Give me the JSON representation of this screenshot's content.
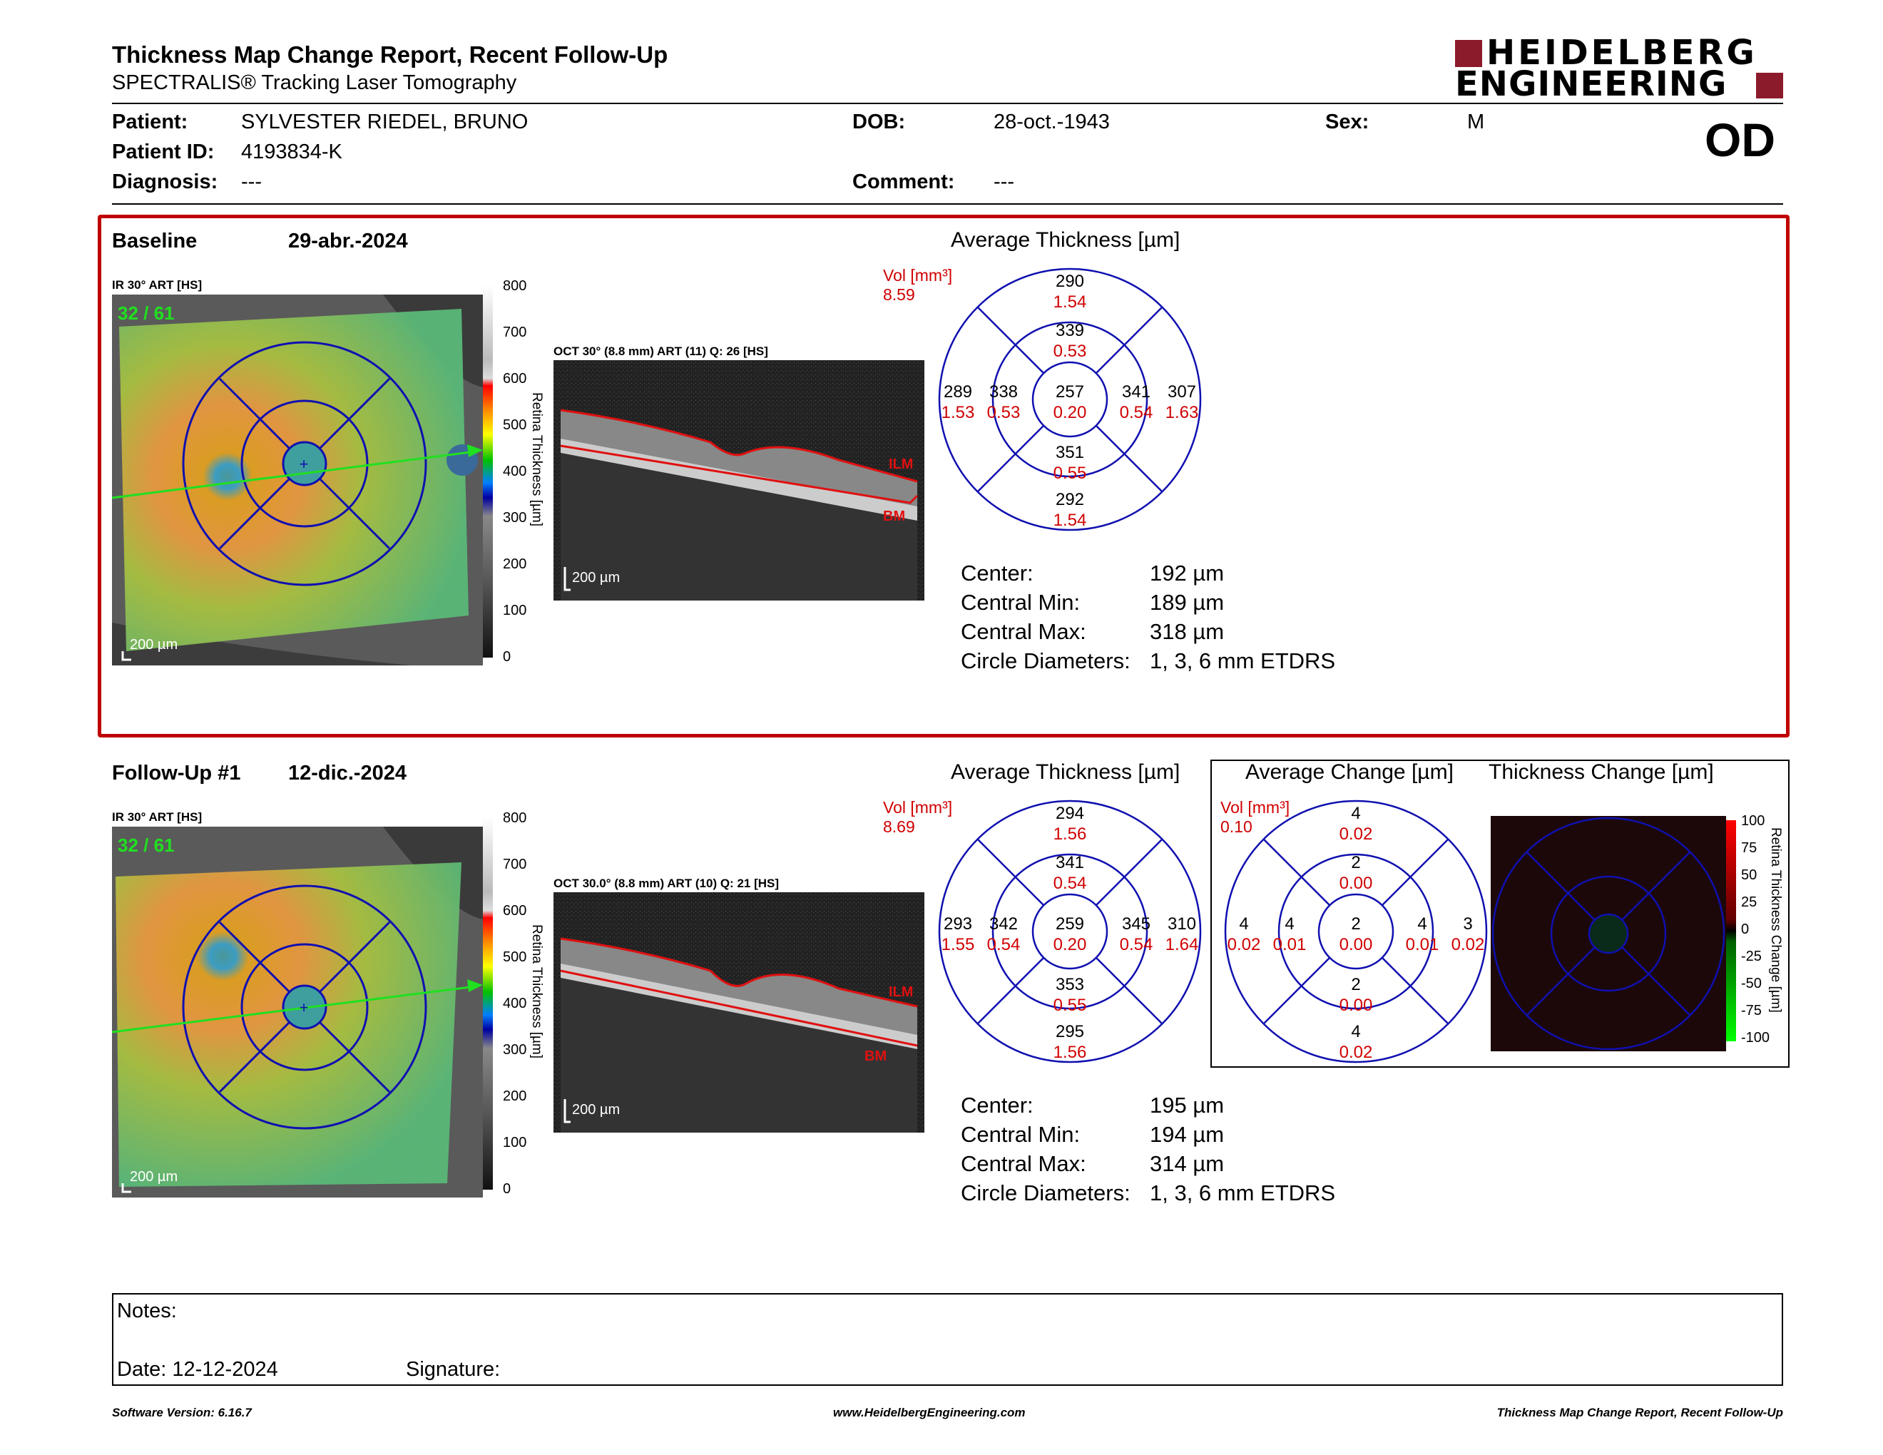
{
  "header": {
    "title": "Thickness Map Change Report, Recent Follow-Up",
    "subtitle": "SPECTRALIS® Tracking Laser Tomography",
    "logo_line1": "HEIDELBERG",
    "logo_line2": "ENGINEERING",
    "eye": "OD",
    "brand_color": "#8b1a2b"
  },
  "patient": {
    "patient_label": "Patient:",
    "patient_value": "SYLVESTER RIEDEL, BRUNO",
    "id_label": "Patient ID:",
    "id_value": "4193834-K",
    "diagnosis_label": "Diagnosis:",
    "diagnosis_value": "---",
    "dob_label": "DOB:",
    "dob_value": "28-oct.-1943",
    "comment_label": "Comment:",
    "comment_value": "---",
    "sex_label": "Sex:",
    "sex_value": "M"
  },
  "baseline": {
    "label": "Baseline",
    "date": "29-abr.-2024",
    "ir_label": "IR 30° ART [HS]",
    "frames": "32 / 61",
    "scale": "200 µm",
    "colorbar_ticks": [
      "800",
      "700",
      "600",
      "500",
      "400",
      "300",
      "200",
      "100",
      "0"
    ],
    "colorbar_label": "Retina Thickness [µm]",
    "oct_label": "OCT 30° (8.8 mm) ART (11) Q: 26 [HS]",
    "oct_scale": "200 µm",
    "ilm": "ILM",
    "bm": "BM",
    "avg_title": "Average Thickness [µm]",
    "vol_label": "Vol [mm³]",
    "vol_total": "8.59",
    "etdrs": {
      "outer_sup": "290",
      "outer_sup_v": "1.54",
      "inner_sup": "339",
      "inner_sup_v": "0.53",
      "outer_tmp": "289",
      "outer_tmp_v": "1.53",
      "inner_tmp": "338",
      "inner_tmp_v": "0.53",
      "center": "257",
      "center_v": "0.20",
      "inner_nas": "341",
      "inner_nas_v": "0.54",
      "outer_nas": "307",
      "outer_nas_v": "1.63",
      "inner_inf": "351",
      "inner_inf_v": "0.55",
      "outer_inf": "292",
      "outer_inf_v": "1.54"
    },
    "stats": {
      "center_label": "Center:",
      "center_value": "192 µm",
      "min_label": "Central Min:",
      "min_value": "189 µm",
      "max_label": "Central Max:",
      "max_value": "318 µm",
      "diam_label": "Circle Diameters:",
      "diam_value": "1, 3, 6 mm ETDRS"
    }
  },
  "followup": {
    "label": "Follow-Up #1",
    "date": "12-dic.-2024",
    "ir_label": "IR 30° ART [HS]",
    "frames": "32 / 61",
    "scale": "200 µm",
    "colorbar_ticks": [
      "800",
      "700",
      "600",
      "500",
      "400",
      "300",
      "200",
      "100",
      "0"
    ],
    "colorbar_label": "Retina Thickness [µm]",
    "oct_label": "OCT 30.0° (8.8 mm) ART (10) Q: 21 [HS]",
    "oct_scale": "200 µm",
    "ilm": "ILM",
    "bm": "BM",
    "avg_title": "Average Thickness [µm]",
    "vol_label": "Vol [mm³]",
    "vol_total": "8.69",
    "etdrs": {
      "outer_sup": "294",
      "outer_sup_v": "1.56",
      "inner_sup": "341",
      "inner_sup_v": "0.54",
      "outer_tmp": "293",
      "outer_tmp_v": "1.55",
      "inner_tmp": "342",
      "inner_tmp_v": "0.54",
      "center": "259",
      "center_v": "0.20",
      "inner_nas": "345",
      "inner_nas_v": "0.54",
      "outer_nas": "310",
      "outer_nas_v": "1.64",
      "inner_inf": "353",
      "inner_inf_v": "0.55",
      "outer_inf": "295",
      "outer_inf_v": "1.56"
    },
    "stats": {
      "center_label": "Center:",
      "center_value": "195 µm",
      "min_label": "Central Min:",
      "min_value": "194 µm",
      "max_label": "Central Max:",
      "max_value": "314 µm",
      "diam_label": "Circle Diameters:",
      "diam_value": "1, 3, 6 mm ETDRS"
    }
  },
  "change": {
    "avg_change_title": "Average Change [µm]",
    "thickness_change_title": "Thickness Change [µm]",
    "vol_label": "Vol [mm³]",
    "vol_total": "0.10",
    "etdrs": {
      "outer_sup": "4",
      "outer_sup_v": "0.02",
      "inner_sup": "2",
      "inner_sup_v": "0.00",
      "outer_tmp": "4",
      "outer_tmp_v": "0.02",
      "inner_tmp": "4",
      "inner_tmp_v": "0.01",
      "center": "2",
      "center_v": "0.00",
      "inner_nas": "4",
      "inner_nas_v": "0.01",
      "outer_nas": "3",
      "outer_nas_v": "0.02",
      "inner_inf": "2",
      "inner_inf_v": "0.00",
      "outer_inf": "4",
      "outer_inf_v": "0.02"
    },
    "colorbar_ticks": [
      "100",
      "75",
      "50",
      "25",
      "0",
      "-25",
      "-50",
      "-75",
      "-100"
    ],
    "colorbar_label": "Retina Thickness Change [µm]"
  },
  "notes": {
    "notes_label": "Notes:",
    "date_label": "Date: 12-12-2024",
    "signature_label": "Signature:"
  },
  "footer": {
    "software": "Software Version: 6.16.7",
    "website": "www.HeidelbergEngineering.com",
    "report_name": "Thickness Map Change Report, Recent Follow-Up"
  }
}
